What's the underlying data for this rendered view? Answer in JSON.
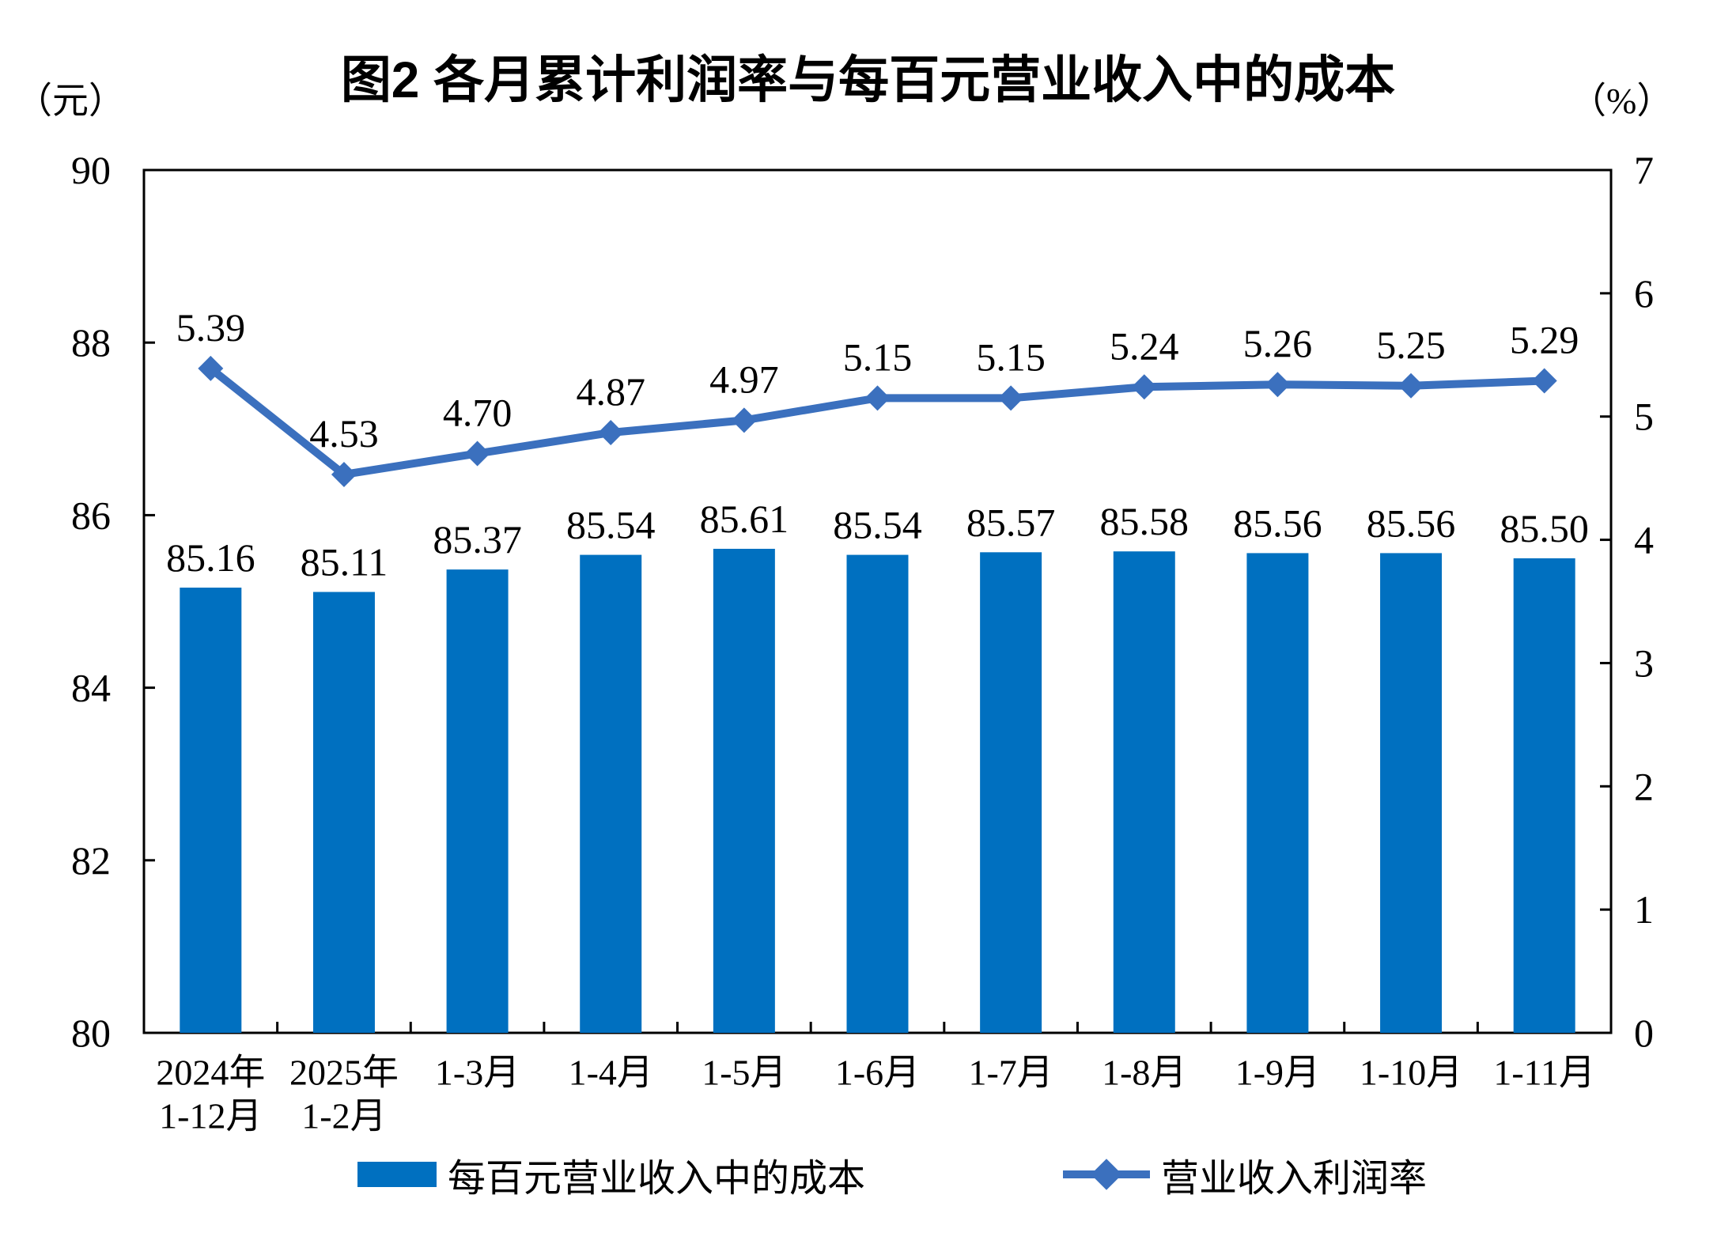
{
  "title": "图2 各月累计利润率与每百元营业收入中的成本",
  "axis_left": {
    "unit": "（元）",
    "min": 80,
    "max": 90,
    "step": 2,
    "ticks": [
      "80",
      "82",
      "84",
      "86",
      "88",
      "90"
    ]
  },
  "axis_right": {
    "unit": "（%）",
    "min": 0,
    "max": 7,
    "step": 1,
    "ticks": [
      "0",
      "1",
      "2",
      "3",
      "4",
      "5",
      "6",
      "7"
    ]
  },
  "legend": [
    {
      "label": "每百元营业收入中的成本",
      "type": "bar",
      "color": "#0070C0"
    },
    {
      "label": "营业收入利润率",
      "type": "line",
      "color": "#3B70BE"
    }
  ],
  "chart_data": {
    "type": "bar+line",
    "title": "图2 各月累计利润率与每百元营业收入中的成本",
    "categories": [
      [
        "2024年",
        "1-12月"
      ],
      [
        "2025年",
        "1-2月"
      ],
      [
        "1-3月"
      ],
      [
        "1-4月"
      ],
      [
        "1-5月"
      ],
      [
        "1-6月"
      ],
      [
        "1-7月"
      ],
      [
        "1-8月"
      ],
      [
        "1-9月"
      ],
      [
        "1-10月"
      ],
      [
        "1-11月"
      ]
    ],
    "series": [
      {
        "name": "每百元营业收入中的成本",
        "type": "bar",
        "axis": "left",
        "color": "#0070C0",
        "values": [
          85.16,
          85.11,
          85.37,
          85.54,
          85.61,
          85.54,
          85.57,
          85.58,
          85.56,
          85.56,
          85.5
        ],
        "labels": [
          "85.16",
          "85.11",
          "85.37",
          "85.54",
          "85.61",
          "85.54",
          "85.57",
          "85.58",
          "85.56",
          "85.56",
          "85.50"
        ]
      },
      {
        "name": "营业收入利润率",
        "type": "line",
        "axis": "right",
        "color": "#3B70BE",
        "marker": "diamond",
        "values": [
          5.39,
          4.53,
          4.7,
          4.87,
          4.97,
          5.15,
          5.15,
          5.24,
          5.26,
          5.25,
          5.29
        ],
        "labels": [
          "5.39",
          "4.53",
          "4.70",
          "4.87",
          "4.97",
          "5.15",
          "5.15",
          "5.24",
          "5.26",
          "5.25",
          "5.29"
        ]
      }
    ],
    "ylim_left": [
      80,
      90
    ],
    "ylim_right": [
      0,
      7
    ],
    "grid": false,
    "legend_position": "bottom",
    "data_labels": true
  }
}
